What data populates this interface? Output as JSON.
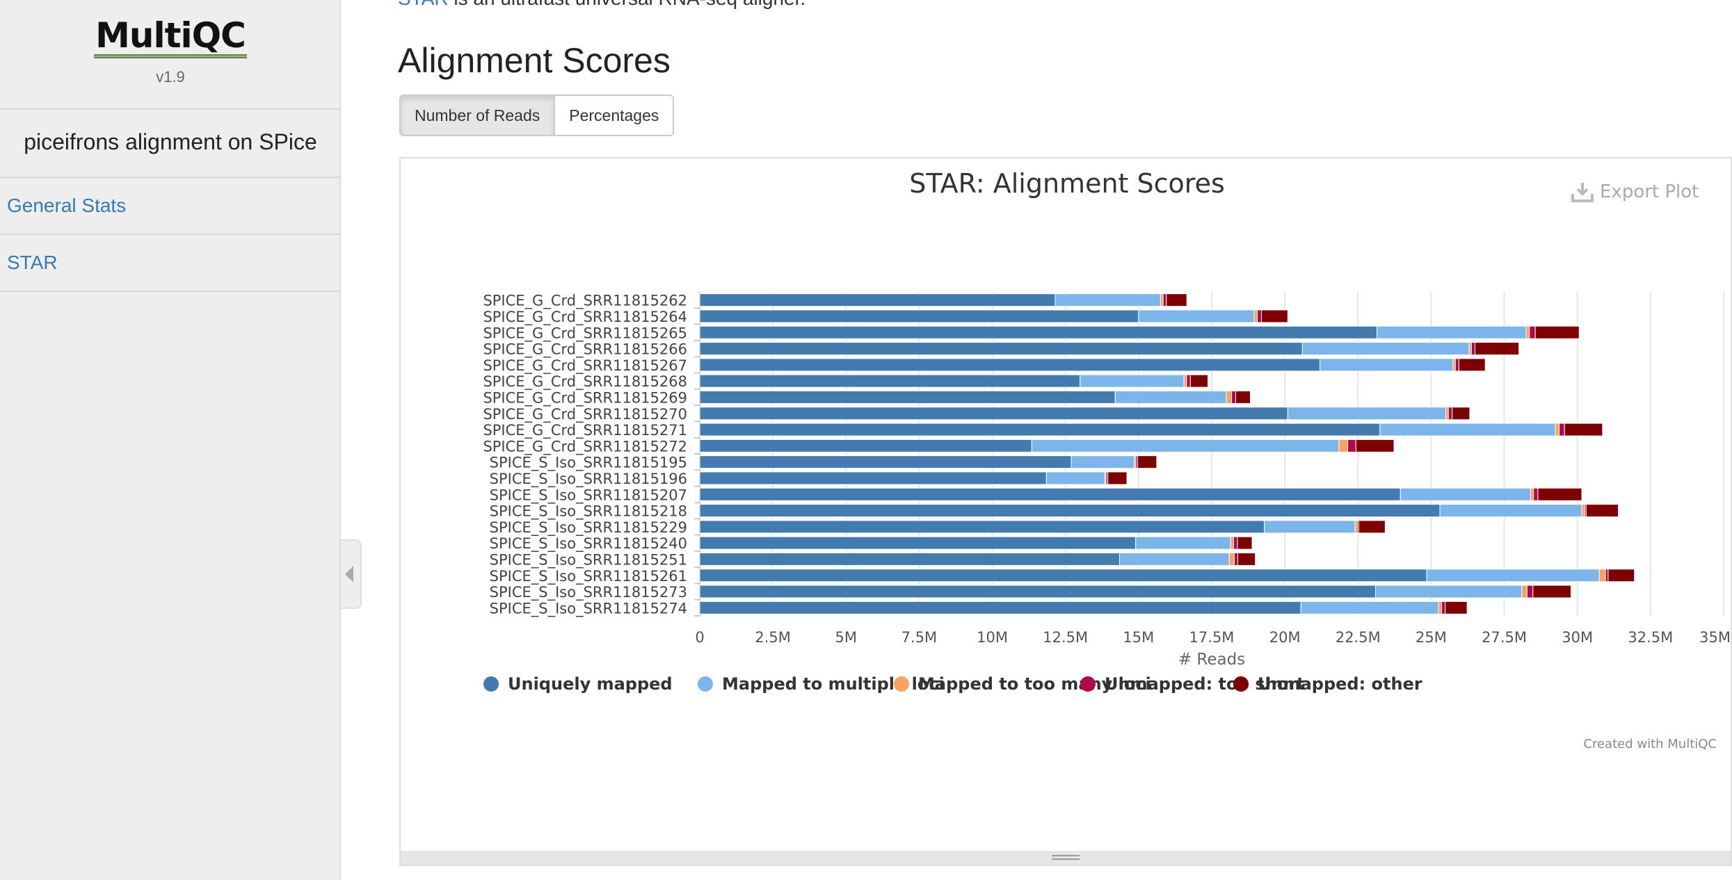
{
  "sidebar": {
    "logo_text": "MultiQC",
    "version": "v1.9",
    "report_title": "piceifrons alignment on SPice",
    "nav": [
      "General Stats",
      "STAR"
    ]
  },
  "main": {
    "intro_link": "STAR",
    "intro_text": "is an ultrafast universal RNA-seq aligner.",
    "section_title": "Alignment Scores",
    "toggle_buttons": [
      "Number of Reads",
      "Percentages"
    ],
    "export_label": "Export Plot",
    "credit": "Created with MultiQC"
  },
  "chart_data": {
    "type": "bar",
    "orientation": "horizontal",
    "stacked": true,
    "title": "STAR: Alignment Scores",
    "xlabel": "# Reads",
    "ylabel": "",
    "xlim": [
      0,
      35000000
    ],
    "xticks": [
      "0",
      "2.5M",
      "5M",
      "7.5M",
      "10M",
      "12.5M",
      "15M",
      "17.5M",
      "20M",
      "22.5M",
      "25M",
      "27.5M",
      "30M",
      "32.5M",
      "35M"
    ],
    "grid": true,
    "legend_position": "bottom",
    "categories": [
      "SPICE_G_Crd_SRR11815262",
      "SPICE_G_Crd_SRR11815264",
      "SPICE_G_Crd_SRR11815265",
      "SPICE_G_Crd_SRR11815266",
      "SPICE_G_Crd_SRR11815267",
      "SPICE_G_Crd_SRR11815268",
      "SPICE_G_Crd_SRR11815269",
      "SPICE_G_Crd_SRR11815270",
      "SPICE_G_Crd_SRR11815271",
      "SPICE_G_Crd_SRR11815272",
      "SPICE_S_Iso_SRR11815195",
      "SPICE_S_Iso_SRR11815196",
      "SPICE_S_Iso_SRR11815207",
      "SPICE_S_Iso_SRR11815218",
      "SPICE_S_Iso_SRR11815229",
      "SPICE_S_Iso_SRR11815240",
      "SPICE_S_Iso_SRR11815251",
      "SPICE_S_Iso_SRR11815261",
      "SPICE_S_Iso_SRR11815273",
      "SPICE_S_Iso_SRR11815274"
    ],
    "series": [
      {
        "name": "Uniquely mapped",
        "color": "#437bb1",
        "values": [
          12150000,
          15000000,
          23150000,
          20600000,
          21200000,
          13000000,
          14200000,
          20100000,
          23250000,
          11350000,
          12700000,
          11850000,
          23950000,
          25300000,
          19300000,
          14900000,
          14350000,
          24850000,
          23100000,
          20550000
        ]
      },
      {
        "name": "Mapped to multiple loci",
        "color": "#7cb5ec",
        "values": [
          3600000,
          3950000,
          5100000,
          5700000,
          4550000,
          3550000,
          3800000,
          5400000,
          6000000,
          10500000,
          2150000,
          2000000,
          4450000,
          4850000,
          3100000,
          3250000,
          3750000,
          5900000,
          5000000,
          4700000
        ]
      },
      {
        "name": "Mapped to too many loci",
        "color": "#f7a35c",
        "values": [
          90000,
          110000,
          110000,
          80000,
          80000,
          90000,
          180000,
          90000,
          130000,
          300000,
          60000,
          40000,
          100000,
          100000,
          80000,
          100000,
          170000,
          210000,
          180000,
          110000
        ]
      },
      {
        "name": "Unmapped: too short",
        "color": "#b1084c",
        "values": [
          110000,
          140000,
          200000,
          120000,
          120000,
          130000,
          140000,
          130000,
          180000,
          280000,
          60000,
          60000,
          150000,
          50000,
          50000,
          130000,
          120000,
          90000,
          200000,
          120000
        ]
      },
      {
        "name": "Unmapped: other",
        "color": "#7f0000",
        "values": [
          700000,
          900000,
          1500000,
          1500000,
          900000,
          600000,
          500000,
          600000,
          1300000,
          1300000,
          650000,
          650000,
          1500000,
          1100000,
          900000,
          500000,
          600000,
          900000,
          1300000,
          750000
        ]
      }
    ]
  }
}
